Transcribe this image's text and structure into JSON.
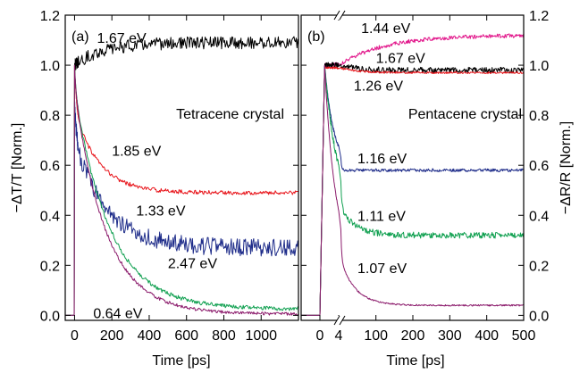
{
  "chart_data": [
    {
      "type": "line",
      "panel_label": "(a)",
      "annotation": "Tetracene crystal",
      "xlabel": "Time [ps]",
      "ylabel": "−ΔT/T [Norm.]",
      "xlim": [
        -50,
        1200
      ],
      "ylim": [
        -0.02,
        1.2
      ],
      "xticks": [
        0,
        200,
        400,
        600,
        800,
        1000
      ],
      "yticks": [
        0.0,
        0.2,
        0.4,
        0.6,
        0.8,
        1.0,
        1.2
      ],
      "ytick_labels": [
        "0.0",
        "0.2",
        "0.4",
        "0.6",
        "0.8",
        "1.0",
        "1.2"
      ],
      "series": [
        {
          "name": "1.67 eV",
          "color": "#000000",
          "rise_end": 0,
          "peak": 1.0,
          "baseline": 1.09,
          "tau": 150,
          "noise": 0.025,
          "amp2": 0,
          "tau2": 1
        },
        {
          "name": "1.85 eV",
          "color": "#e8151b",
          "rise_end": 0,
          "peak": 1.0,
          "baseline": 0.49,
          "tau": 130,
          "noise": 0.008,
          "amp2": 0.18,
          "tau2": 10
        },
        {
          "name": "1.33 eV",
          "color": "#1f2d8a",
          "rise_end": 0,
          "peak": 0.85,
          "baseline": 0.27,
          "tau": 170,
          "noise": 0.035,
          "amp2": 0.15,
          "tau2": 10
        },
        {
          "name": "2.47 eV",
          "color": "#10a050",
          "rise_end": 0,
          "peak": 1.0,
          "baseline": 0.025,
          "tau": 190,
          "noise": 0.008,
          "amp2": 0.1,
          "tau2": 8
        },
        {
          "name": "0.64 eV",
          "color": "#8b1a6b",
          "rise_end": 0,
          "peak": 1.0,
          "baseline": 0.005,
          "tau": 170,
          "noise": 0.006,
          "amp2": 0.1,
          "tau2": 8
        }
      ],
      "labels": [
        {
          "text": "1.67 eV",
          "x": 120,
          "y": 1.11
        },
        {
          "text": "1.85 eV",
          "x": 200,
          "y": 0.66
        },
        {
          "text": "1.33 eV",
          "x": 330,
          "y": 0.42
        },
        {
          "text": "2.47 eV",
          "x": 500,
          "y": 0.21
        },
        {
          "text": "0.64 eV",
          "x": 100,
          "y": 0.01
        }
      ]
    },
    {
      "type": "line",
      "panel_label": "(b)",
      "annotation": "Pentacene crystal",
      "xlabel": "Time [ps]",
      "ylabel": "−ΔR/R [Norm.]",
      "ylim": [
        -0.02,
        1.2
      ],
      "x_segments": [
        {
          "from": -4,
          "to": 4,
          "ticks": [
            0,
            4
          ]
        },
        {
          "from": 4,
          "to": 500,
          "ticks": [
            100,
            200,
            300,
            400,
            500
          ]
        }
      ],
      "yticks": [
        0.0,
        0.2,
        0.4,
        0.6,
        0.8,
        1.0,
        1.2
      ],
      "ytick_labels": [
        "0.0",
        "0.2",
        "0.4",
        "0.6",
        "0.8",
        "1.0",
        "1.2"
      ],
      "series": [
        {
          "name": "1.44 eV",
          "color": "#e2198c",
          "rise_end": 1,
          "peak": 1.0,
          "baseline": 1.12,
          "tau": 120,
          "noise": 0.008,
          "amp2": 0,
          "tau2": 1
        },
        {
          "name": "1.67 eV",
          "color": "#000000",
          "rise_end": 1,
          "peak": 1.0,
          "baseline": 0.98,
          "tau": 50,
          "noise": 0.012,
          "amp2": 0,
          "tau2": 1
        },
        {
          "name": "1.26 eV",
          "color": "#e8151b",
          "rise_end": 1,
          "peak": 0.99,
          "baseline": 0.97,
          "tau": 50,
          "noise": 0.004,
          "amp2": 0,
          "tau2": 1
        },
        {
          "name": "1.16 eV",
          "color": "#1f2d8a",
          "rise_end": 1,
          "peak": 1.0,
          "baseline": 0.58,
          "tau": 2,
          "noise": 0.006,
          "amp2": 0,
          "tau2": 1
        },
        {
          "name": "1.11 eV",
          "color": "#10a050",
          "rise_end": 1,
          "peak": 1.0,
          "baseline": 0.32,
          "tau": 2.5,
          "noise": 0.012,
          "amp2": 0.12,
          "tau2": 40
        },
        {
          "name": "1.07 eV",
          "color": "#8b1a6b",
          "rise_end": 1,
          "peak": 1.0,
          "baseline": 0.04,
          "tau": 2.2,
          "noise": 0.003,
          "amp2": 0.2,
          "tau2": 40
        }
      ],
      "labels": [
        {
          "text": "1.44 eV",
          "x": 60,
          "y": 1.15
        },
        {
          "text": "1.67 eV",
          "x": 100,
          "y": 1.03
        },
        {
          "text": "1.26 eV",
          "x": 40,
          "y": 0.92
        },
        {
          "text": "1.16 eV",
          "x": 50,
          "y": 0.63
        },
        {
          "text": "1.11 eV",
          "x": 50,
          "y": 0.4
        },
        {
          "text": "1.07 eV",
          "x": 50,
          "y": 0.19
        }
      ]
    }
  ]
}
